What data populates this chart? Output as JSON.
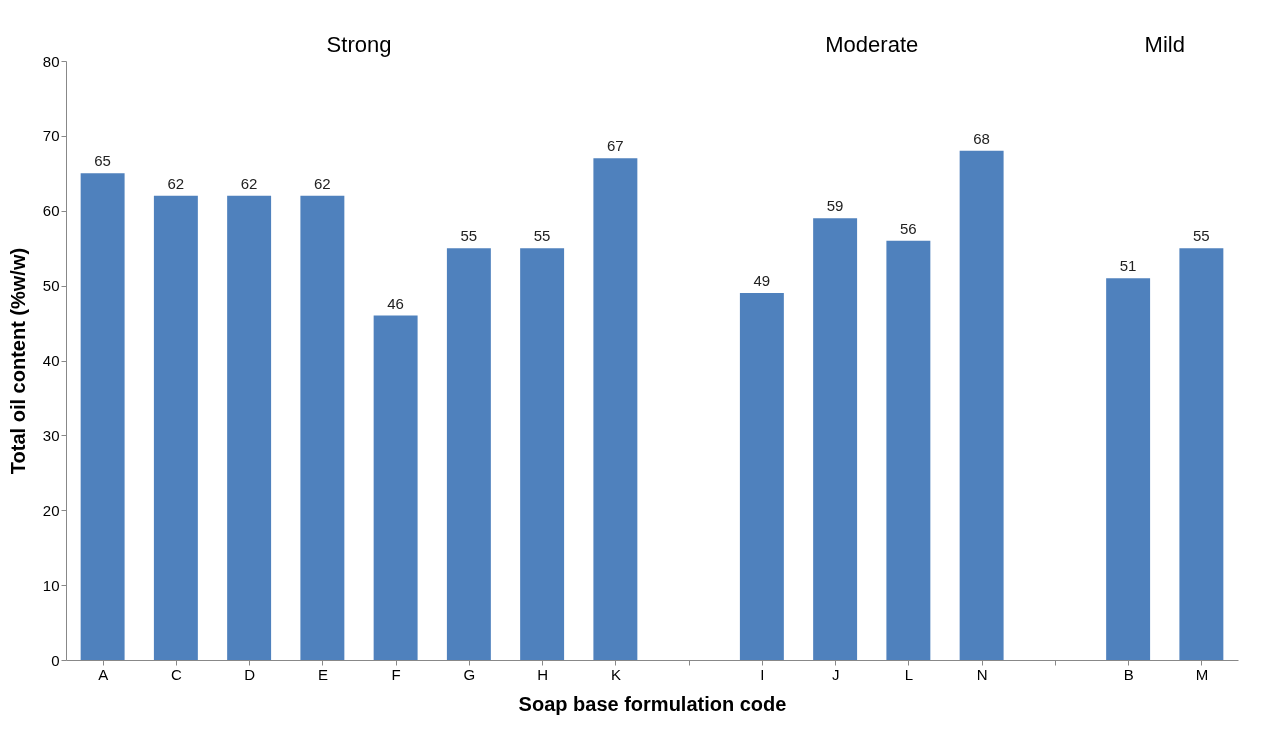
{
  "chart_data": {
    "type": "bar",
    "xlabel": "Soap base formulation code",
    "ylabel": "Total oil content (%w/w)",
    "categories": [
      "A",
      "C",
      "D",
      "E",
      "F",
      "G",
      "H",
      "K",
      null,
      "I",
      "J",
      "L",
      "N",
      null,
      "B",
      "M"
    ],
    "values": [
      65,
      62,
      62,
      62,
      46,
      55,
      55,
      67,
      null,
      49,
      59,
      56,
      68,
      null,
      51,
      55
    ],
    "color": "#4f81bd",
    "ylim": [
      0,
      80
    ],
    "yticks": [
      0,
      10,
      20,
      30,
      40,
      50,
      60,
      70,
      80
    ],
    "grid": false,
    "data_labels": true,
    "annotations": [
      "Strong",
      "Moderate",
      "Mild"
    ]
  }
}
